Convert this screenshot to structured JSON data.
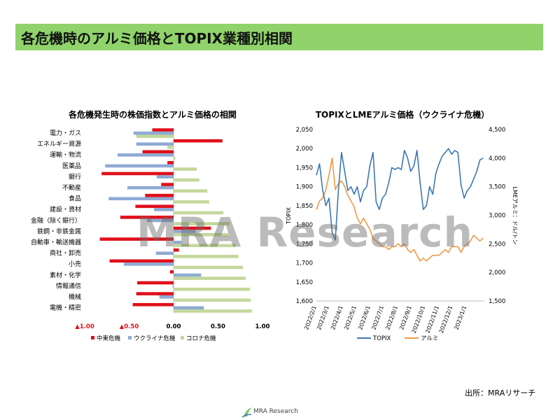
{
  "header": {
    "title": "各危機時のアルミ価格とTOPIX業種別相関"
  },
  "watermark": {
    "text": "MRA Research"
  },
  "source": {
    "text": "出所：MRAリサーチ"
  },
  "footer": {
    "brand": "MRA Research"
  },
  "colors": {
    "header_bg": "#8fd36a",
    "mideast": "#e0101a",
    "ukraine": "#8faad3",
    "corona": "#c4d89c",
    "topix": "#3b78b4",
    "alumi": "#ef9a45"
  },
  "chart_data": [
    {
      "type": "bar",
      "orientation": "horizontal",
      "title": "各危機発生時の株価指数とアルミ価格の相関",
      "categories": [
        "電力・ガス",
        "エネルギー資源",
        "運輸・物流",
        "医薬品",
        "銀行",
        "不動産",
        "食品",
        "建設・資材",
        "金融（除く銀行）",
        "鉄鋼・非鉄金属",
        "自動車・輸送機器",
        "商社・卸売",
        "小売",
        "素材・化学",
        "情報通信",
        "機械",
        "電機・精密"
      ],
      "series": [
        {
          "name": "中東危機",
          "values": [
            -0.24,
            0.55,
            -0.35,
            -0.07,
            -0.81,
            -0.14,
            -0.32,
            -0.43,
            -0.6,
            0.42,
            -0.83,
            0.06,
            -0.72,
            -0.04,
            -0.41,
            -0.42,
            -0.46
          ]
        },
        {
          "name": "ウクライナ危機",
          "values": [
            -0.45,
            -0.42,
            -0.63,
            -0.77,
            -0.19,
            -0.52,
            -0.73,
            -0.22,
            -0.3,
            0.25,
            0.09,
            -0.2,
            -0.56,
            0.31,
            -0.01,
            -0.16,
            0.34
          ]
        },
        {
          "name": "コロナ危機",
          "values": [
            -0.42,
            -0.07,
            0.02,
            0.26,
            0.29,
            0.38,
            0.4,
            0.56,
            0.63,
            0.62,
            0.7,
            0.73,
            0.78,
            0.81,
            0.86,
            0.87,
            0.88
          ]
        }
      ],
      "xlim": [
        -1.0,
        1.0
      ],
      "ticks": [
        {
          "value": -1.0,
          "label": "▲1.00"
        },
        {
          "value": -0.5,
          "label": "▲0.50"
        },
        {
          "value": 0.0,
          "label": "0.00"
        },
        {
          "value": 0.5,
          "label": "0.50"
        },
        {
          "value": 1.0,
          "label": "1.00"
        }
      ],
      "legend_position": "bottom"
    },
    {
      "type": "line",
      "title": "TOPIXとLMEアルミ価格（ウクライナ危機）",
      "y1label": "TOPIX",
      "y2label": "LMEアルミ：ドル/トン",
      "y1lim": [
        1600,
        2050
      ],
      "y1ticks": [
        "1,600",
        "1,650",
        "1,700",
        "1,750",
        "1,800",
        "1,850",
        "1,900",
        "1,950",
        "2,000",
        "2,050"
      ],
      "y2lim": [
        1500,
        4500
      ],
      "y2ticks": [
        "1,500",
        "2,000",
        "2,500",
        "3,000",
        "3,500",
        "4,000",
        "4,500"
      ],
      "xlim": [
        "2022/2/1",
        "2023/2/10"
      ],
      "xticks": [
        "2022/2/1",
        "2022/3/1",
        "2022/4/1",
        "2022/5/1",
        "2022/6/1",
        "2022/7/1",
        "2022/8/1",
        "2022/9/1",
        "2022/10/1",
        "2022/11/1",
        "2022/12/1",
        "2023/1/1"
      ],
      "legend_position": "bottom",
      "series": [
        {
          "name": "TOPIX",
          "axis": "left",
          "x": [
            "2022/2/1",
            "2022/2/8",
            "2022/2/15",
            "2022/2/22",
            "2022/3/1",
            "2022/3/8",
            "2022/3/15",
            "2022/3/22",
            "2022/3/29",
            "2022/4/5",
            "2022/4/12",
            "2022/4/19",
            "2022/4/26",
            "2022/5/3",
            "2022/5/10",
            "2022/5/17",
            "2022/5/24",
            "2022/5/31",
            "2022/6/7",
            "2022/6/14",
            "2022/6/21",
            "2022/6/28",
            "2022/7/5",
            "2022/7/12",
            "2022/7/19",
            "2022/7/26",
            "2022/8/2",
            "2022/8/9",
            "2022/8/16",
            "2022/8/23",
            "2022/8/30",
            "2022/9/6",
            "2022/9/13",
            "2022/9/20",
            "2022/9/27",
            "2022/10/4",
            "2022/10/11",
            "2022/10/18",
            "2022/10/25",
            "2022/11/1",
            "2022/11/8",
            "2022/11/15",
            "2022/11/22",
            "2022/11/29",
            "2022/12/6",
            "2022/12/13",
            "2022/12/20",
            "2022/12/27",
            "2023/1/3",
            "2023/1/10",
            "2023/1/17",
            "2023/1/24",
            "2023/1/31",
            "2023/2/7"
          ],
          "y": [
            1930,
            1960,
            1890,
            1850,
            1870,
            1780,
            1760,
            1890,
            1990,
            1940,
            1890,
            1900,
            1880,
            1900,
            1860,
            1890,
            1900,
            1955,
            1990,
            1860,
            1840,
            1870,
            1880,
            1910,
            1950,
            1945,
            1950,
            1945,
            1995,
            1975,
            1940,
            1955,
            1995,
            1910,
            1840,
            1850,
            1900,
            1880,
            1935,
            1960,
            1980,
            1990,
            2000,
            1985,
            1995,
            1990,
            1905,
            1870,
            1890,
            1900,
            1920,
            1940,
            1970,
            1975
          ]
        },
        {
          "name": "アルミ",
          "axis": "right",
          "x": [
            "2022/2/1",
            "2022/2/8",
            "2022/2/15",
            "2022/2/22",
            "2022/3/1",
            "2022/3/8",
            "2022/3/15",
            "2022/3/22",
            "2022/3/29",
            "2022/4/5",
            "2022/4/12",
            "2022/4/19",
            "2022/4/26",
            "2022/5/3",
            "2022/5/10",
            "2022/5/17",
            "2022/5/24",
            "2022/5/31",
            "2022/6/7",
            "2022/6/14",
            "2022/6/21",
            "2022/6/28",
            "2022/7/5",
            "2022/7/12",
            "2022/7/19",
            "2022/7/26",
            "2022/8/2",
            "2022/8/9",
            "2022/8/16",
            "2022/8/23",
            "2022/8/30",
            "2022/9/6",
            "2022/9/13",
            "2022/9/20",
            "2022/9/27",
            "2022/10/4",
            "2022/10/11",
            "2022/10/18",
            "2022/10/25",
            "2022/11/1",
            "2022/11/8",
            "2022/11/15",
            "2022/11/22",
            "2022/11/29",
            "2022/12/6",
            "2022/12/13",
            "2022/12/20",
            "2022/12/27",
            "2023/1/3",
            "2023/1/10",
            "2023/1/17",
            "2023/1/24",
            "2023/1/31",
            "2023/2/7"
          ],
          "y": [
            3100,
            3250,
            3300,
            3450,
            3700,
            4000,
            3450,
            3550,
            3600,
            3500,
            3350,
            3250,
            3150,
            2950,
            2850,
            2950,
            2850,
            2750,
            2600,
            2550,
            2500,
            2450,
            2450,
            2400,
            2450,
            2450,
            2500,
            2450,
            2500,
            2400,
            2350,
            2400,
            2300,
            2200,
            2250,
            2200,
            2250,
            2300,
            2300,
            2300,
            2350,
            2400,
            2350,
            2450,
            2450,
            2450,
            2350,
            2450,
            2500,
            2550,
            2650,
            2600,
            2550,
            2600
          ]
        }
      ]
    }
  ]
}
